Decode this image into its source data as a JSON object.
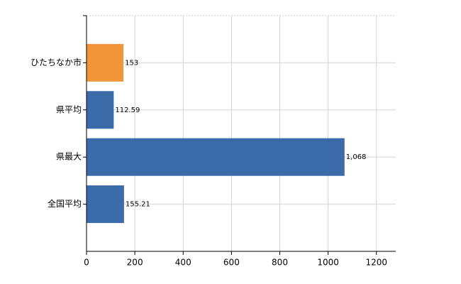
{
  "chart_data": {
    "type": "barh",
    "categories": [
      "ひたちなか市",
      "県平均",
      "県最大",
      "全国平均"
    ],
    "values": [
      153,
      112.59,
      1068,
      155.21
    ],
    "value_labels": [
      "153",
      "112.59",
      "1,068",
      "155.21"
    ],
    "colors": [
      "#f0953a",
      "#3b6ba8",
      "#3b6ba8",
      "#3b6ba8"
    ],
    "xlim": [
      0,
      1280
    ],
    "xticks": [
      0,
      200,
      400,
      600,
      800,
      1000,
      1200
    ],
    "grid": true
  }
}
